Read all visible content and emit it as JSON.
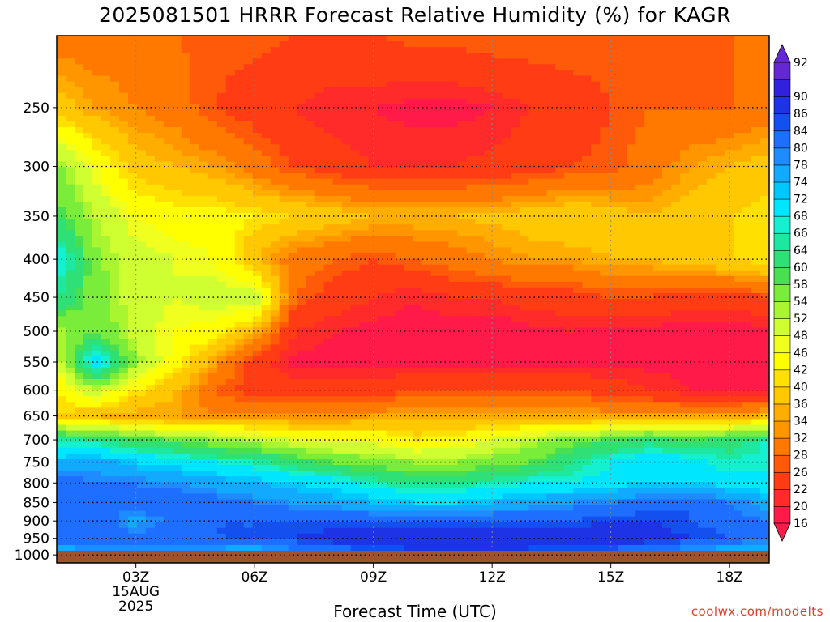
{
  "chart_data": {
    "type": "heatmap",
    "title": "2025081501 HRRR Forecast Relative Humidity (%) for KAGR",
    "xlabel": "Forecast Time (UTC)",
    "ylabel": "",
    "x_ticks": [
      "03Z",
      "06Z",
      "09Z",
      "12Z",
      "15Z",
      "18Z"
    ],
    "x_tick_hours": [
      3,
      6,
      9,
      12,
      15,
      18
    ],
    "x_date_line1": "15AUG",
    "x_date_line2": "2025",
    "xlim_hours": [
      1,
      19
    ],
    "y_ticks": [
      250,
      300,
      350,
      400,
      450,
      500,
      550,
      600,
      650,
      700,
      750,
      800,
      850,
      900,
      950,
      1000
    ],
    "ylim_hpa": [
      1025,
      200
    ],
    "y_scale": "log",
    "grid": true,
    "colorbar_levels": [
      16,
      20,
      22,
      26,
      28,
      32,
      34,
      36,
      40,
      42,
      46,
      48,
      52,
      54,
      58,
      60,
      64,
      66,
      68,
      72,
      74,
      78,
      80,
      84,
      86,
      90,
      92
    ],
    "colorbar_colors": [
      "#ff1a4a",
      "#ff2a2a",
      "#ff3c14",
      "#ff5a0a",
      "#ff7800",
      "#ff9600",
      "#ffae00",
      "#ffc800",
      "#ffe000",
      "#ffff00",
      "#f0ff1e",
      "#cfff30",
      "#a8f530",
      "#7aec3a",
      "#48e050",
      "#2ee076",
      "#1ee8a0",
      "#14f0d0",
      "#00e6ff",
      "#00c8ff",
      "#12aaff",
      "#1e8cff",
      "#1e6eff",
      "#1450f0",
      "#1e32e6",
      "#3220dc",
      "#6428d2"
    ],
    "extend": "both",
    "ground_color": "#a0522d",
    "credit": "coolwx.com/modelts",
    "rh_profile_x_hours": [
      1,
      2,
      3,
      4,
      5,
      6,
      7,
      8,
      9,
      10,
      11,
      12,
      13,
      14,
      15,
      16,
      17,
      18,
      19
    ],
    "rh_profile_levels_hpa": [
      200,
      250,
      300,
      350,
      400,
      450,
      500,
      550,
      600,
      650,
      700,
      750,
      800,
      850,
      900,
      950,
      1000
    ],
    "rh_values": [
      [
        30,
        30,
        30,
        28,
        27,
        27,
        26,
        26,
        26,
        27,
        27,
        28,
        28,
        28,
        27,
        26,
        27,
        28,
        28
      ],
      [
        38,
        34,
        32,
        30,
        26,
        24,
        22,
        20,
        20,
        19,
        19,
        20,
        22,
        24,
        26,
        28,
        28,
        28,
        30
      ],
      [
        55,
        46,
        38,
        36,
        34,
        30,
        26,
        24,
        22,
        22,
        22,
        23,
        24,
        26,
        27,
        30,
        34,
        36,
        38
      ],
      [
        60,
        52,
        46,
        44,
        44,
        42,
        40,
        38,
        36,
        36,
        36,
        37,
        38,
        40,
        38,
        36,
        38,
        40,
        42
      ],
      [
        70,
        55,
        50,
        48,
        46,
        36,
        30,
        28,
        26,
        28,
        30,
        32,
        34,
        34,
        36,
        36,
        38,
        40,
        42
      ],
      [
        64,
        56,
        50,
        48,
        50,
        52,
        28,
        24,
        22,
        20,
        22,
        22,
        24,
        24,
        26,
        26,
        24,
        24,
        26
      ],
      [
        52,
        58,
        50,
        46,
        44,
        36,
        22,
        20,
        19,
        19,
        18,
        18,
        19,
        20,
        19,
        19,
        18,
        18,
        19
      ],
      [
        50,
        72,
        54,
        44,
        34,
        24,
        19,
        19,
        19,
        19,
        19,
        19,
        19,
        19,
        19,
        19,
        19,
        19,
        19
      ],
      [
        42,
        52,
        42,
        36,
        28,
        24,
        24,
        24,
        24,
        26,
        26,
        26,
        26,
        26,
        24,
        22,
        20,
        19,
        20
      ],
      [
        40,
        36,
        34,
        34,
        32,
        32,
        32,
        32,
        34,
        34,
        34,
        34,
        34,
        34,
        34,
        34,
        34,
        34,
        36
      ],
      [
        66,
        64,
        60,
        58,
        54,
        52,
        48,
        46,
        46,
        42,
        44,
        48,
        52,
        56,
        60,
        62,
        60,
        62,
        66
      ],
      [
        74,
        76,
        72,
        70,
        68,
        66,
        62,
        58,
        56,
        54,
        54,
        56,
        58,
        64,
        68,
        72,
        70,
        66,
        68
      ],
      [
        84,
        80,
        80,
        78,
        76,
        74,
        72,
        70,
        66,
        64,
        64,
        66,
        68,
        68,
        70,
        72,
        72,
        70,
        68
      ],
      [
        80,
        80,
        82,
        84,
        82,
        80,
        78,
        76,
        74,
        72,
        72,
        74,
        76,
        78,
        80,
        82,
        84,
        80,
        76
      ],
      [
        82,
        84,
        76,
        82,
        84,
        84,
        84,
        84,
        84,
        84,
        84,
        84,
        84,
        84,
        86,
        86,
        84,
        82,
        80
      ],
      [
        82,
        84,
        82,
        84,
        84,
        84,
        86,
        88,
        88,
        90,
        90,
        90,
        88,
        90,
        90,
        88,
        86,
        84,
        80
      ],
      [
        72,
        76,
        78,
        76,
        74,
        72,
        76,
        80,
        82,
        84,
        86,
        86,
        84,
        82,
        80,
        78,
        74,
        72,
        70
      ]
    ]
  }
}
